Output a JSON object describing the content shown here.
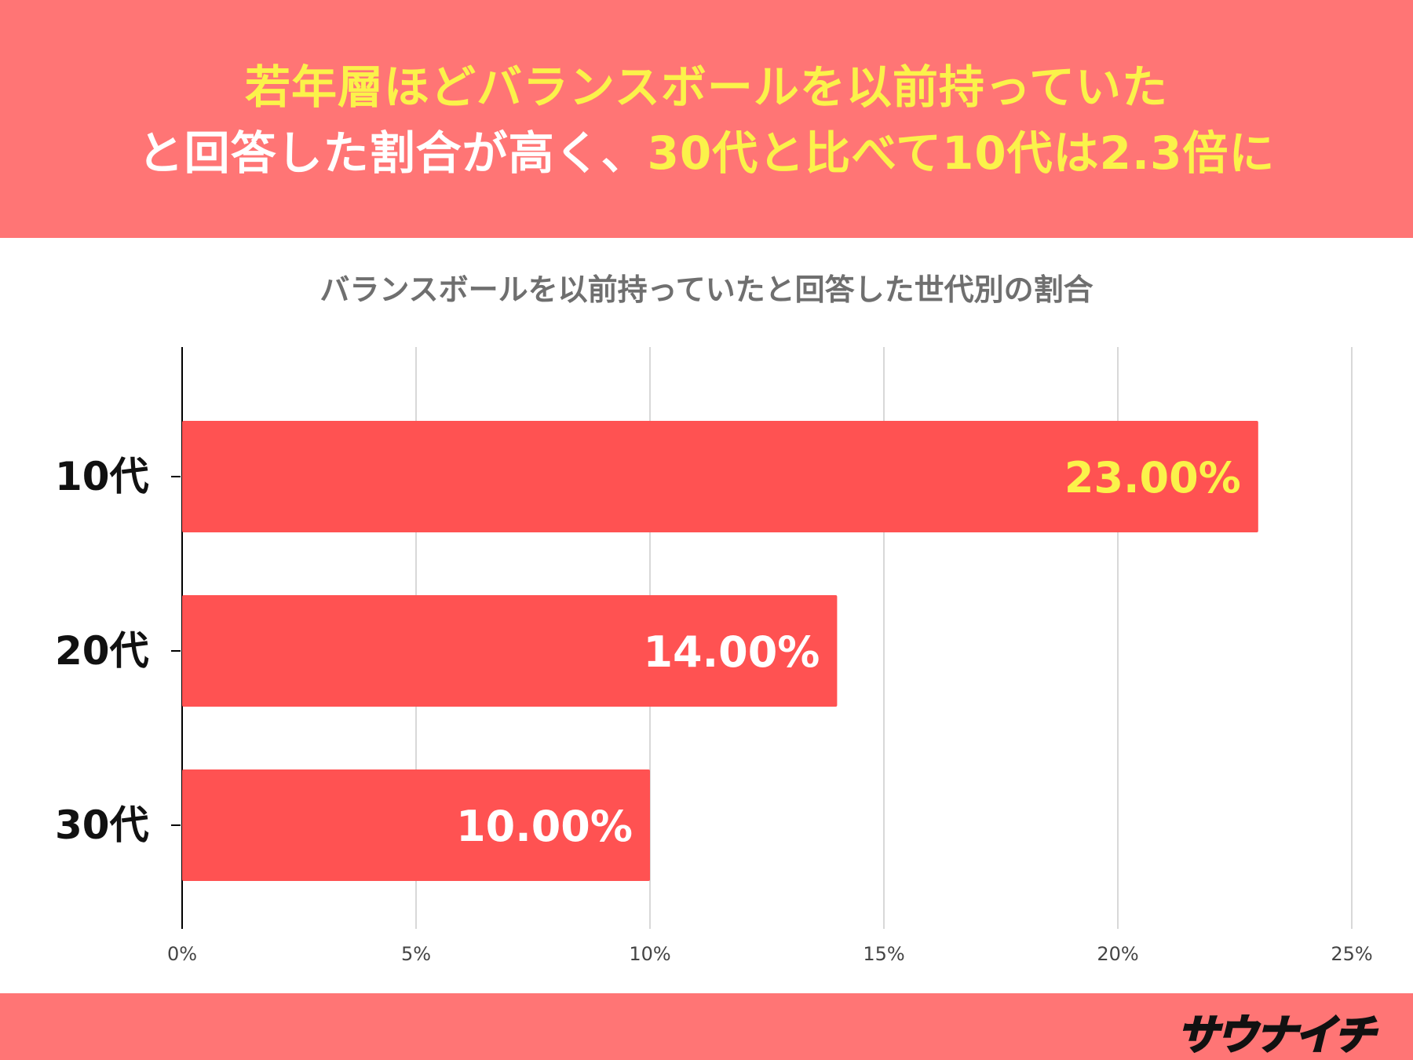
{
  "header": {
    "line1": [
      {
        "text": "若年層ほどバランスボールを以前持っていた",
        "color": "#fbf24a"
      }
    ],
    "line2": [
      {
        "text": "と回答した割合が高く、",
        "color": "#ffffff"
      },
      {
        "text": "30代と比べて10代は2.3倍に",
        "color": "#fbf24a"
      }
    ]
  },
  "logo": {
    "text": "サウナイチ"
  },
  "colors": {
    "band": "#ff7575",
    "bar": "#ff5252",
    "highlight_label": "#fbf24a",
    "label": "#ffffff",
    "grid": "#cccccc",
    "axis": "#000000"
  },
  "chart_data": {
    "type": "bar",
    "orientation": "horizontal",
    "title": "バランスボールを以前持っていたと回答した世代別の割合",
    "categories": [
      "10代",
      "20代",
      "30代"
    ],
    "values": [
      23.0,
      14.0,
      10.0
    ],
    "data_labels": [
      "23.00%",
      "14.00%",
      "10.00%"
    ],
    "xlim": [
      0,
      25
    ],
    "xticks": [
      0,
      5,
      10,
      15,
      20,
      25
    ],
    "xtick_labels": [
      "0%",
      "5%",
      "10%",
      "15%",
      "20%",
      "25%"
    ],
    "grid": true,
    "legend": "none"
  }
}
